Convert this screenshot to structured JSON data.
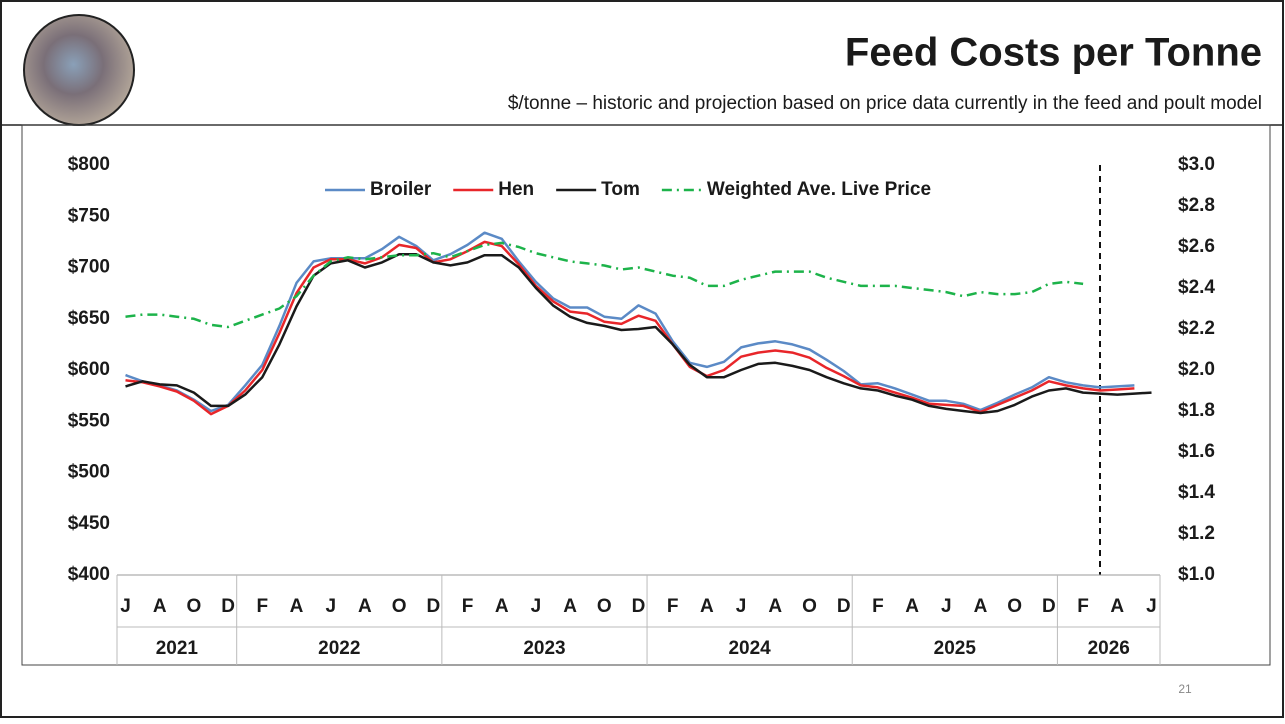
{
  "chart_data": {
    "type": "line",
    "title": "Feed Costs per Tonne",
    "subtitle": "$/tonne – historic and projection based on price data currently in the feed and poult model",
    "categories": [
      "J",
      null,
      "A",
      null,
      "O",
      null,
      "D",
      null,
      "F",
      null,
      "A",
      null,
      "J",
      null,
      "A",
      null,
      "O",
      null,
      "D",
      null,
      "F",
      null,
      "A",
      null,
      "J",
      null,
      "A",
      null,
      "O",
      null,
      "D",
      null,
      "F",
      null,
      "A",
      null,
      "J",
      null,
      "A",
      null,
      "O",
      null,
      "D",
      null,
      "F",
      null,
      "A",
      null,
      "J",
      null,
      "A",
      null,
      "O",
      null,
      "D",
      null,
      "F",
      null,
      "A",
      null,
      "J"
    ],
    "year_labels": [
      "2021",
      "2022",
      "2023",
      "2024",
      "2025",
      "2026"
    ],
    "ylim": [
      400,
      800
    ],
    "yticks": [
      {
        "value": 400,
        "label": "$400"
      },
      {
        "value": 450,
        "label": "$450"
      },
      {
        "value": 500,
        "label": "$500"
      },
      {
        "value": 550,
        "label": "$550"
      },
      {
        "value": 600,
        "label": "$600"
      },
      {
        "value": 650,
        "label": "$650"
      },
      {
        "value": 700,
        "label": "$700"
      },
      {
        "value": 750,
        "label": "$750"
      },
      {
        "value": 800,
        "label": "$800"
      }
    ],
    "y2lim": [
      1.0,
      3.0
    ],
    "y2ticks": [
      {
        "value": 1.0,
        "label": "$1.0"
      },
      {
        "value": 1.2,
        "label": "$1.2"
      },
      {
        "value": 1.4,
        "label": "$1.4"
      },
      {
        "value": 1.6,
        "label": "$1.6"
      },
      {
        "value": 1.8,
        "label": "$1.8"
      },
      {
        "value": 2.0,
        "label": "$2.0"
      },
      {
        "value": 2.2,
        "label": "$2.2"
      },
      {
        "value": 2.4,
        "label": "$2.4"
      },
      {
        "value": 2.6,
        "label": "$2.6"
      },
      {
        "value": 2.8,
        "label": "$2.8"
      },
      {
        "value": 3.0,
        "label": "$3.0"
      }
    ],
    "legend": "top",
    "series": [
      {
        "name": "Broiler",
        "color": "#5b8ac6",
        "values": [
          595,
          589,
          585,
          580,
          571,
          560,
          566,
          585,
          605,
          643,
          685,
          706,
          709,
          709,
          709,
          718,
          730,
          721,
          707,
          713,
          722,
          734,
          728,
          706,
          686,
          670,
          661,
          661,
          652,
          650,
          663,
          655,
          628,
          607,
          603,
          608,
          622,
          626,
          628,
          625,
          620,
          610,
          599,
          586,
          587,
          582,
          576,
          570,
          570,
          567,
          561,
          568,
          576,
          583,
          593,
          588,
          585,
          583,
          584,
          585,
          null
        ]
      },
      {
        "name": "Hen",
        "color": "#e8262a",
        "values": [
          590,
          588,
          584,
          579,
          570,
          557,
          565,
          580,
          600,
          636,
          675,
          700,
          708,
          708,
          704,
          710,
          722,
          719,
          705,
          708,
          716,
          725,
          721,
          703,
          682,
          667,
          657,
          655,
          647,
          645,
          653,
          648,
          625,
          603,
          594,
          600,
          613,
          617,
          619,
          617,
          612,
          602,
          594,
          585,
          583,
          578,
          573,
          567,
          566,
          565,
          559,
          566,
          573,
          580,
          589,
          585,
          582,
          580,
          581,
          582,
          null
        ]
      },
      {
        "name": "Tom",
        "color": "#1a1a1a",
        "values": [
          584,
          589,
          586,
          585,
          578,
          565,
          565,
          576,
          593,
          625,
          662,
          692,
          704,
          707,
          700,
          705,
          713,
          713,
          705,
          702,
          705,
          712,
          712,
          700,
          680,
          663,
          652,
          646,
          643,
          639,
          640,
          642,
          625,
          605,
          593,
          593,
          600,
          606,
          607,
          604,
          600,
          593,
          587,
          582,
          580,
          575,
          571,
          565,
          562,
          560,
          558,
          560,
          566,
          574,
          580,
          582,
          578,
          577,
          576,
          577,
          578
        ]
      },
      {
        "name": "Weighted Ave. Live Price",
        "color": "#1db34a",
        "axis": "y2",
        "dash": true,
        "values": [
          2.26,
          2.27,
          2.27,
          2.26,
          2.25,
          2.22,
          2.21,
          2.24,
          2.27,
          2.3,
          2.36,
          2.46,
          2.53,
          2.55,
          2.54,
          2.55,
          2.56,
          2.56,
          2.57,
          2.55,
          2.58,
          2.61,
          2.62,
          2.6,
          2.57,
          2.55,
          2.53,
          2.52,
          2.51,
          2.49,
          2.5,
          2.48,
          2.46,
          2.45,
          2.41,
          2.41,
          2.44,
          2.46,
          2.48,
          2.48,
          2.48,
          2.45,
          2.43,
          2.41,
          2.41,
          2.41,
          2.4,
          2.39,
          2.38,
          2.36,
          2.38,
          2.37,
          2.37,
          2.38,
          2.42,
          2.43,
          2.42,
          null,
          null,
          null,
          null
        ]
      }
    ]
  },
  "page_number": "21"
}
